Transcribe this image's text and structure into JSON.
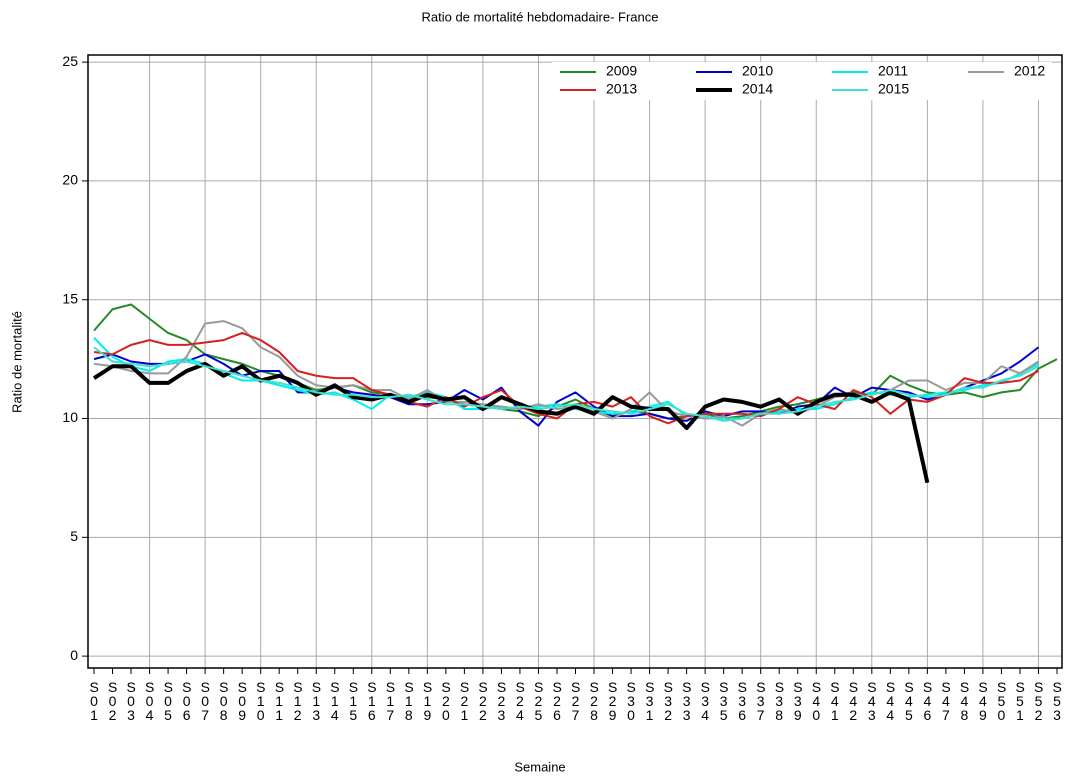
{
  "chart_data": {
    "type": "line",
    "title": "Ratio de mortalité hebdomadaire- France",
    "xlabel": "Semaine",
    "ylabel": "Ratio de mortalité",
    "categories": [
      "S01",
      "S02",
      "S03",
      "S04",
      "S05",
      "S06",
      "S07",
      "S08",
      "S09",
      "S10",
      "S11",
      "S12",
      "S13",
      "S14",
      "S15",
      "S16",
      "S17",
      "S18",
      "S19",
      "S20",
      "S21",
      "S22",
      "S23",
      "S24",
      "S25",
      "S26",
      "S27",
      "S28",
      "S29",
      "S30",
      "S31",
      "S32",
      "S33",
      "S34",
      "S35",
      "S36",
      "S37",
      "S38",
      "S39",
      "S40",
      "S41",
      "S42",
      "S43",
      "S44",
      "S45",
      "S46",
      "S47",
      "S48",
      "S49",
      "S50",
      "S51",
      "S52",
      "S53"
    ],
    "ylim": [
      -0.5,
      25.3
    ],
    "yticks": [
      0,
      5,
      10,
      15,
      20,
      25
    ],
    "grid": true,
    "legend": "top-right",
    "series": [
      {
        "name": "2009",
        "color": "#228b22",
        "width": 2,
        "values": [
          13.7,
          14.6,
          14.8,
          14.2,
          13.6,
          13.3,
          12.7,
          12.5,
          12.3,
          12.0,
          11.8,
          11.5,
          11.2,
          11.3,
          11.4,
          11.1,
          11.0,
          10.8,
          10.9,
          10.8,
          10.6,
          10.5,
          10.4,
          10.3,
          10.1,
          10.5,
          10.8,
          10.4,
          10.1,
          10.3,
          10.2,
          10.0,
          10.1,
          10.2,
          10.0,
          10.1,
          10.3,
          10.5,
          10.6,
          10.8,
          11.0,
          11.1,
          11.0,
          11.8,
          11.4,
          11.1,
          11.0,
          11.1,
          10.9,
          11.1,
          11.2,
          12.1,
          12.5
        ]
      },
      {
        "name": "2010",
        "color": "#0000cd",
        "width": 2,
        "values": [
          12.5,
          12.7,
          12.4,
          12.3,
          12.3,
          12.4,
          12.7,
          12.3,
          11.8,
          12.0,
          12.0,
          11.1,
          11.1,
          11.3,
          11.1,
          11.0,
          10.9,
          10.6,
          10.6,
          10.7,
          11.2,
          10.8,
          11.3,
          10.3,
          9.7,
          10.7,
          11.1,
          10.5,
          10.1,
          10.1,
          10.2,
          10.0,
          9.9,
          10.3,
          10.1,
          10.3,
          10.3,
          10.2,
          10.5,
          10.6,
          11.3,
          10.9,
          11.3,
          11.2,
          11.1,
          10.8,
          11.0,
          11.3,
          11.6,
          11.9,
          12.4,
          13.0,
          null
        ]
      },
      {
        "name": "2011",
        "color": "#00eeee",
        "width": 2,
        "values": [
          13.4,
          12.6,
          12.2,
          12.0,
          12.4,
          12.5,
          12.3,
          11.9,
          11.6,
          11.6,
          11.4,
          11.2,
          11.0,
          11.1,
          10.8,
          10.4,
          11.0,
          10.9,
          11.1,
          10.9,
          10.4,
          10.4,
          10.5,
          10.4,
          10.5,
          10.6,
          10.4,
          10.3,
          10.2,
          10.3,
          10.5,
          10.7,
          10.1,
          10.0,
          10.0,
          10.0,
          10.2,
          10.3,
          10.4,
          10.4,
          10.6,
          10.9,
          11.1,
          11.0,
          10.9,
          11.0,
          11.1,
          11.2,
          11.4,
          11.5,
          11.9,
          12.3,
          null
        ]
      },
      {
        "name": "2012",
        "color": "#999999",
        "width": 2,
        "values": [
          12.3,
          12.2,
          12.0,
          11.9,
          11.9,
          12.6,
          14.0,
          14.1,
          13.8,
          13.0,
          12.6,
          11.8,
          11.4,
          11.3,
          11.4,
          11.2,
          11.2,
          10.8,
          11.2,
          10.7,
          10.7,
          10.6,
          10.5,
          10.4,
          10.6,
          10.4,
          10.5,
          10.3,
          10.0,
          10.4,
          11.1,
          10.3,
          10.1,
          10.0,
          10.1,
          9.7,
          10.2,
          10.4,
          10.2,
          10.5,
          10.9,
          11.0,
          11.0,
          11.2,
          11.6,
          11.6,
          11.2,
          11.5,
          11.5,
          12.2,
          11.9,
          12.4,
          null
        ]
      },
      {
        "name": "2013",
        "color": "#d62020",
        "width": 2,
        "values": [
          12.8,
          12.7,
          13.1,
          13.3,
          13.1,
          13.1,
          13.2,
          13.3,
          13.6,
          13.3,
          12.8,
          12.0,
          11.8,
          11.7,
          11.7,
          11.2,
          11.0,
          10.7,
          10.5,
          10.9,
          10.5,
          10.9,
          11.2,
          10.5,
          10.2,
          10.0,
          10.6,
          10.7,
          10.5,
          10.9,
          10.1,
          9.8,
          10.1,
          10.2,
          10.2,
          10.2,
          10.1,
          10.4,
          10.9,
          10.6,
          10.4,
          11.2,
          10.9,
          10.2,
          10.8,
          10.7,
          11.0,
          11.7,
          11.5,
          11.5,
          11.6,
          12.0,
          null
        ]
      },
      {
        "name": "2014",
        "color": "#000000",
        "width": 4,
        "values": [
          11.7,
          12.2,
          12.2,
          11.5,
          11.5,
          12.0,
          12.3,
          11.8,
          12.2,
          11.6,
          11.8,
          11.5,
          11.0,
          11.4,
          10.9,
          10.8,
          11.0,
          10.7,
          11.0,
          10.8,
          10.9,
          10.4,
          10.9,
          10.6,
          10.3,
          10.2,
          10.5,
          10.2,
          10.9,
          10.5,
          10.4,
          10.4,
          9.6,
          10.5,
          10.8,
          10.7,
          10.5,
          10.8,
          10.2,
          10.7,
          11.0,
          11.0,
          10.7,
          11.1,
          10.8,
          7.3,
          null,
          null,
          null,
          null,
          null,
          null,
          null
        ]
      },
      {
        "name": "2015",
        "color": "#3fe0d0",
        "width": 2,
        "values": [
          13.0,
          12.4,
          12.3,
          12.2,
          12.3,
          12.4,
          12.2,
          12.0,
          11.8,
          11.6,
          11.5,
          11.3,
          11.1,
          11.0,
          11.0,
          10.9,
          10.9,
          11.0,
          10.8,
          10.6,
          10.6,
          10.5,
          10.4,
          10.5,
          10.4,
          10.5,
          10.6,
          10.4,
          10.3,
          10.2,
          10.4,
          10.6,
          10.2,
          10.1,
          9.9,
          10.0,
          10.2,
          10.2,
          10.3,
          10.5,
          10.7,
          10.8,
          11.0,
          11.2,
          11.0,
          10.9,
          11.0,
          11.3,
          11.3,
          11.6,
          11.8,
          12.2,
          null
        ]
      }
    ]
  }
}
